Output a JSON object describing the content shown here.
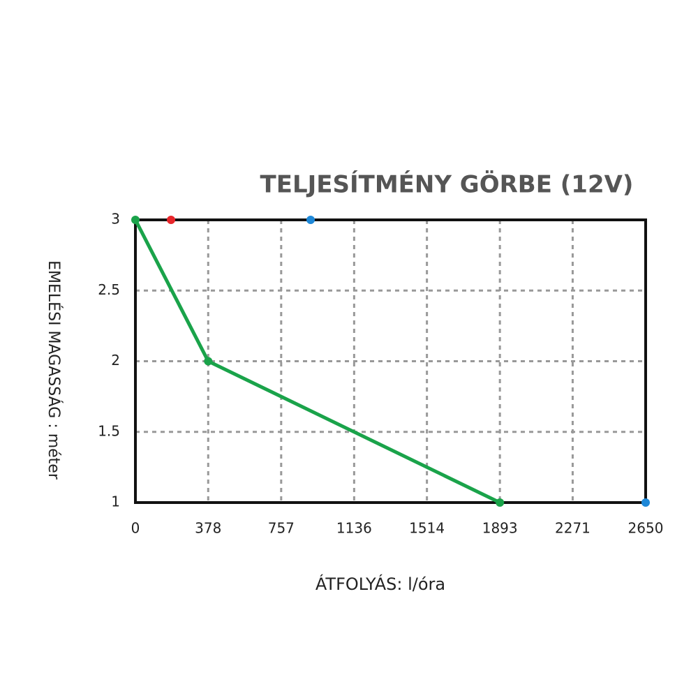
{
  "chart_data": {
    "type": "line",
    "title": "TELJESÍTMÉNY GÖRBE (12V)",
    "xlabel": "ÁTFOLYÁS: l/óra",
    "ylabel": "EMELÉSI MAGASSÁG : méter",
    "xlim": [
      0,
      2650
    ],
    "xticks": [
      0,
      378,
      757,
      1136,
      1514,
      1893,
      2271,
      2650
    ],
    "ylim": [
      1,
      3
    ],
    "yticks": [
      1,
      1.5,
      2,
      2.5,
      3
    ],
    "grid": true,
    "series": [
      {
        "color": "#1aa34a",
        "x": [
          0,
          378,
          1893
        ],
        "values": [
          3,
          2,
          1
        ]
      },
      {
        "type": "scatter",
        "color": "#e8262b",
        "x": [
          185
        ],
        "values": [
          3
        ]
      },
      {
        "type": "scatter",
        "color": "#1e88d8",
        "x": [
          910,
          2650
        ],
        "values": [
          3,
          1
        ]
      }
    ]
  }
}
